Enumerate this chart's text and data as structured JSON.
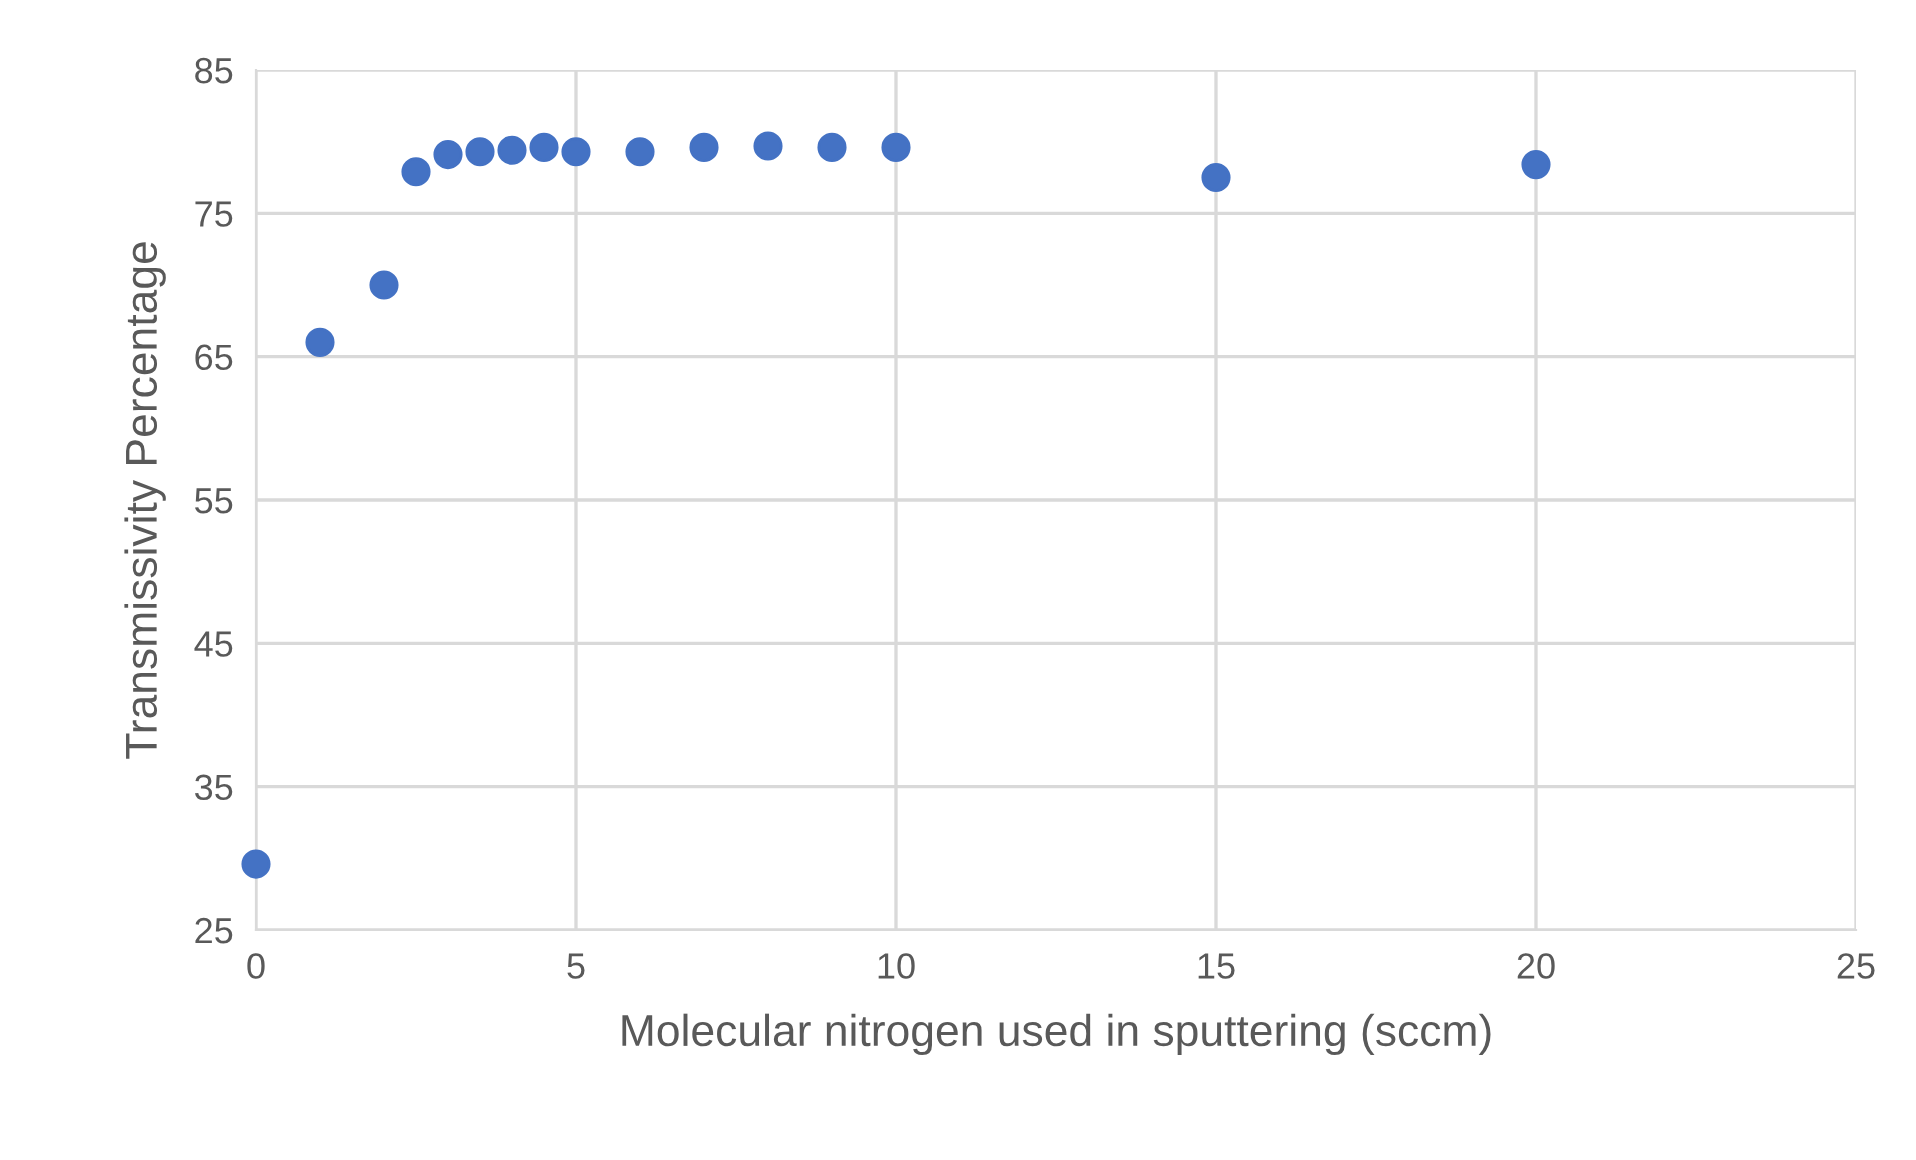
{
  "chart_data": {
    "type": "scatter",
    "xlabel": "Molecular nitrogen used in sputtering (sccm)",
    "ylabel": "Transmissivity Percentage",
    "x": [
      0,
      1,
      2,
      2.5,
      3,
      3.5,
      4,
      4.5,
      5,
      6,
      7,
      8,
      9,
      10,
      15,
      20
    ],
    "series": [
      {
        "color": "#4472c4",
        "values": [
          29.6,
          66.0,
          70.0,
          77.9,
          79.1,
          79.3,
          79.4,
          79.6,
          79.3,
          79.3,
          79.6,
          79.7,
          79.6,
          79.6,
          77.5,
          78.4
        ]
      }
    ],
    "xlim": [
      0,
      25
    ],
    "xticks": [
      0,
      5,
      10,
      15,
      20,
      25
    ],
    "ylim": [
      25,
      85
    ],
    "yticks": [
      25,
      35,
      45,
      55,
      65,
      75,
      85
    ],
    "grid": true,
    "marker": "circle"
  }
}
